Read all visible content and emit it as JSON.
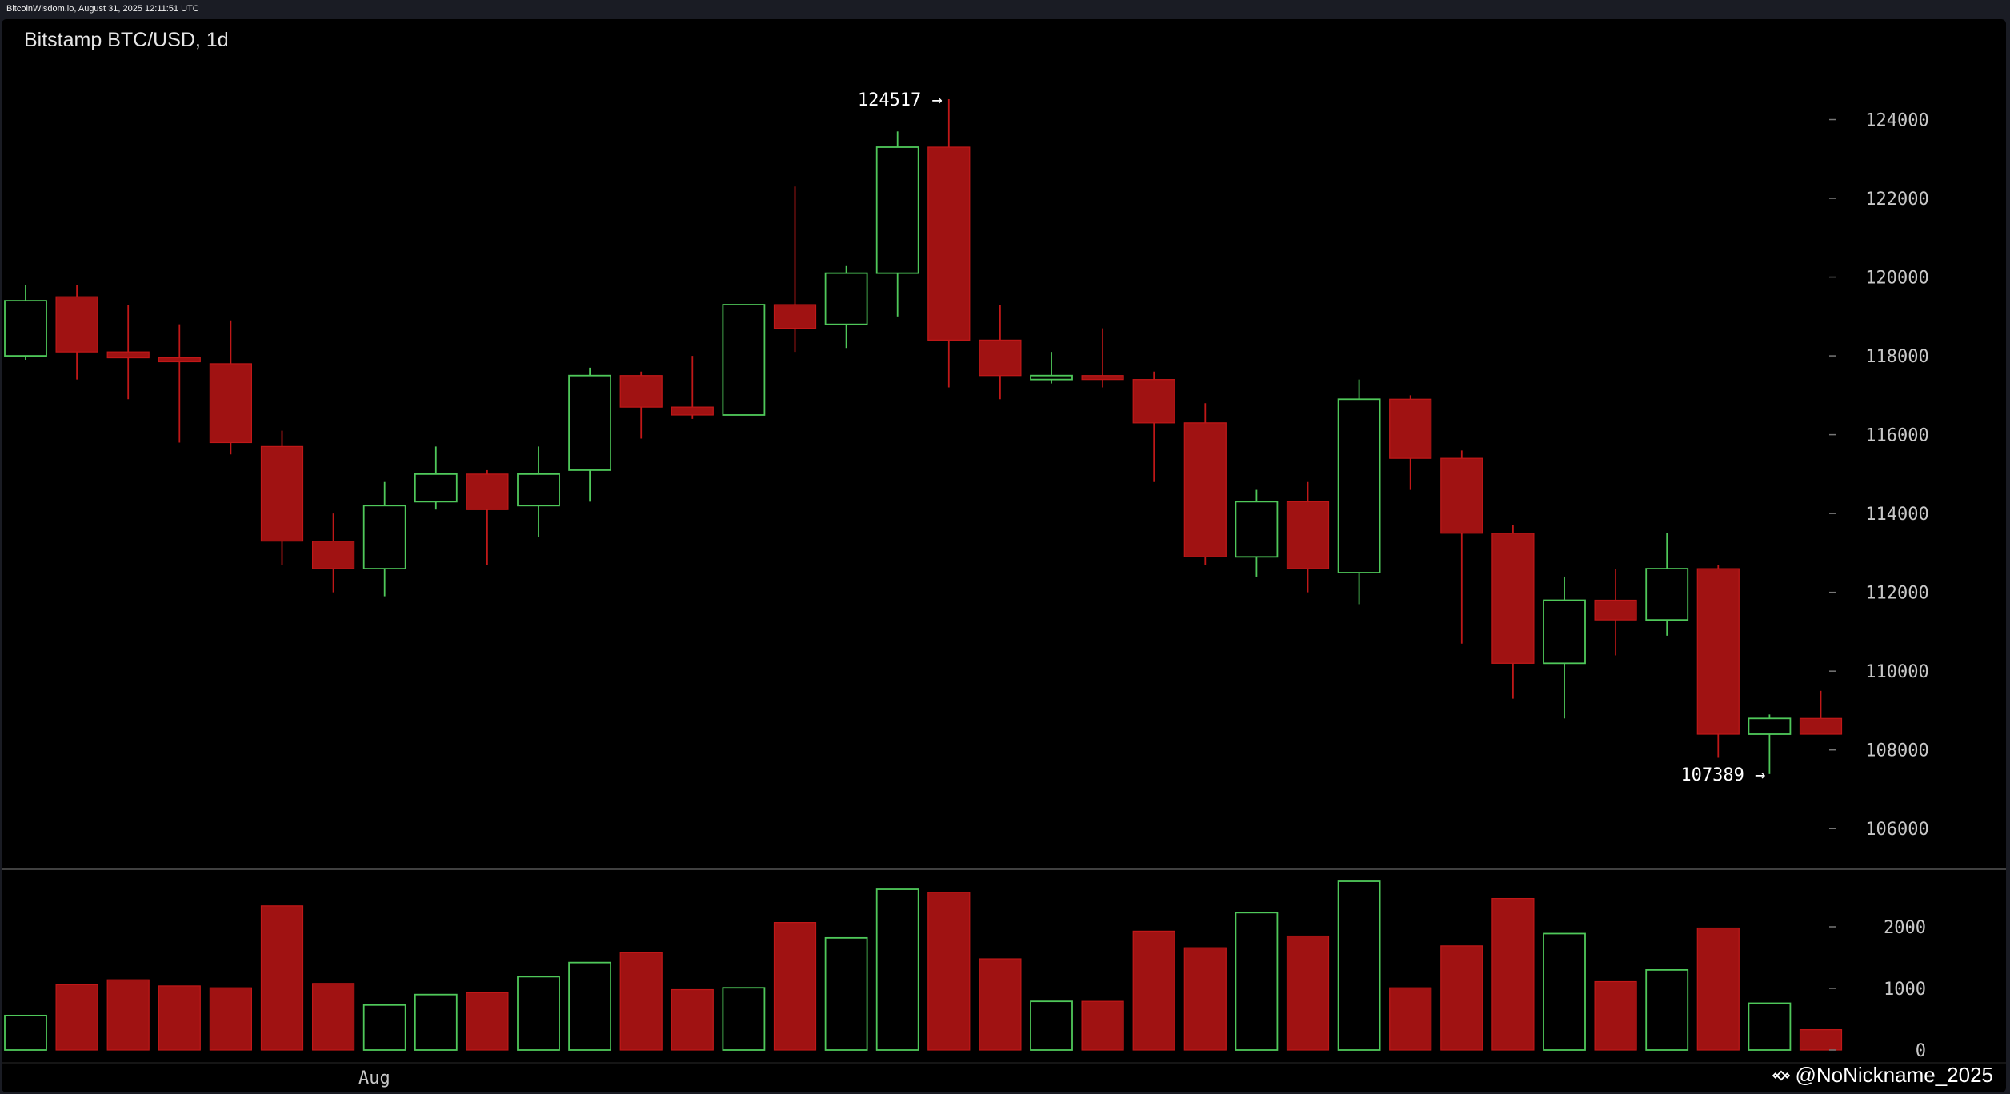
{
  "header": {
    "source_line": "BitcoinWisdom.io, August 31, 2025 12:11:51 UTC"
  },
  "watermark": {
    "handle": "@NoNickname_2025",
    "icon": "binance-logo-icon"
  },
  "colors": {
    "up": "#4fc85a",
    "down": "#a01212",
    "down_stroke": "#c01818",
    "background": "#000000",
    "grid": "#555555"
  },
  "chart_data": {
    "type": "candlestick",
    "title": "Bitstamp BTC/USD, 1d",
    "price_axis": {
      "ylim": [
        105000,
        125000
      ],
      "ticks": [
        106000,
        108000,
        110000,
        112000,
        114000,
        116000,
        118000,
        120000,
        122000,
        124000
      ],
      "tick_labels": [
        "106000",
        "108000",
        "110000",
        "112000",
        "114000",
        "116000",
        "118000",
        "120000",
        "122000",
        "124000"
      ]
    },
    "volume_axis": {
      "ylim": [
        0,
        3000
      ],
      "ticks": [
        0,
        1000,
        2000
      ],
      "tick_labels": [
        "0",
        "1000",
        "2000"
      ]
    },
    "x_labels": [
      {
        "index": 6,
        "label": "Aug"
      }
    ],
    "annotations": [
      {
        "index": 18,
        "value": 124517,
        "text": "124517 →",
        "position": "left-of-high"
      },
      {
        "index": 34,
        "value": 107389,
        "text": "107389 →",
        "position": "left-of-low"
      }
    ],
    "candles": [
      {
        "o": 118000,
        "h": 119800,
        "l": 117900,
        "c": 119400,
        "v": 560
      },
      {
        "o": 119500,
        "h": 119800,
        "l": 117400,
        "c": 118100,
        "v": 1060
      },
      {
        "o": 118100,
        "h": 119300,
        "l": 116900,
        "c": 117950,
        "v": 1140
      },
      {
        "o": 117950,
        "h": 118800,
        "l": 115800,
        "c": 117850,
        "v": 1040
      },
      {
        "o": 117800,
        "h": 118900,
        "l": 115500,
        "c": 115800,
        "v": 1010
      },
      {
        "o": 115700,
        "h": 116100,
        "l": 112700,
        "c": 113300,
        "v": 2340
      },
      {
        "o": 113300,
        "h": 114000,
        "l": 112000,
        "c": 112600,
        "v": 1080
      },
      {
        "o": 112600,
        "h": 114800,
        "l": 111900,
        "c": 114200,
        "v": 730
      },
      {
        "o": 114300,
        "h": 115700,
        "l": 114100,
        "c": 115000,
        "v": 900
      },
      {
        "o": 115000,
        "h": 115100,
        "l": 112700,
        "c": 114100,
        "v": 930
      },
      {
        "o": 114200,
        "h": 115700,
        "l": 113400,
        "c": 115000,
        "v": 1190
      },
      {
        "o": 115100,
        "h": 117700,
        "l": 114300,
        "c": 117500,
        "v": 1420
      },
      {
        "o": 117500,
        "h": 117600,
        "l": 115900,
        "c": 116700,
        "v": 1580
      },
      {
        "o": 116700,
        "h": 118000,
        "l": 116400,
        "c": 116500,
        "v": 980
      },
      {
        "o": 116500,
        "h": 119300,
        "l": 116500,
        "c": 119300,
        "v": 1010
      },
      {
        "o": 119300,
        "h": 122300,
        "l": 118100,
        "c": 118700,
        "v": 2070
      },
      {
        "o": 118800,
        "h": 120300,
        "l": 118200,
        "c": 120100,
        "v": 1820
      },
      {
        "o": 120100,
        "h": 123700,
        "l": 119000,
        "c": 123300,
        "v": 2610
      },
      {
        "o": 123300,
        "h": 124517,
        "l": 117200,
        "c": 118400,
        "v": 2560
      },
      {
        "o": 118400,
        "h": 119300,
        "l": 116900,
        "c": 117500,
        "v": 1480
      },
      {
        "o": 117400,
        "h": 118100,
        "l": 117300,
        "c": 117500,
        "v": 790
      },
      {
        "o": 117500,
        "h": 118700,
        "l": 117200,
        "c": 117400,
        "v": 790
      },
      {
        "o": 117400,
        "h": 117600,
        "l": 114800,
        "c": 116300,
        "v": 1930
      },
      {
        "o": 116300,
        "h": 116800,
        "l": 112700,
        "c": 112900,
        "v": 1660
      },
      {
        "o": 112900,
        "h": 114600,
        "l": 112400,
        "c": 114300,
        "v": 2230
      },
      {
        "o": 114300,
        "h": 114800,
        "l": 112000,
        "c": 112600,
        "v": 1850
      },
      {
        "o": 112500,
        "h": 117400,
        "l": 111700,
        "c": 116900,
        "v": 2740
      },
      {
        "o": 116900,
        "h": 117000,
        "l": 114600,
        "c": 115400,
        "v": 1010
      },
      {
        "o": 115400,
        "h": 115600,
        "l": 110700,
        "c": 113500,
        "v": 1690
      },
      {
        "o": 113500,
        "h": 113700,
        "l": 109300,
        "c": 110200,
        "v": 2460
      },
      {
        "o": 110200,
        "h": 112400,
        "l": 108800,
        "c": 111800,
        "v": 1890
      },
      {
        "o": 111800,
        "h": 112600,
        "l": 110400,
        "c": 111300,
        "v": 1110
      },
      {
        "o": 111300,
        "h": 113500,
        "l": 110900,
        "c": 112600,
        "v": 1300
      },
      {
        "o": 112600,
        "h": 112700,
        "l": 107800,
        "c": 108400,
        "v": 1980
      },
      {
        "o": 108400,
        "h": 108900,
        "l": 107389,
        "c": 108800,
        "v": 760
      },
      {
        "o": 108800,
        "h": 109500,
        "l": 108400,
        "c": 108400,
        "v": 330
      }
    ]
  }
}
